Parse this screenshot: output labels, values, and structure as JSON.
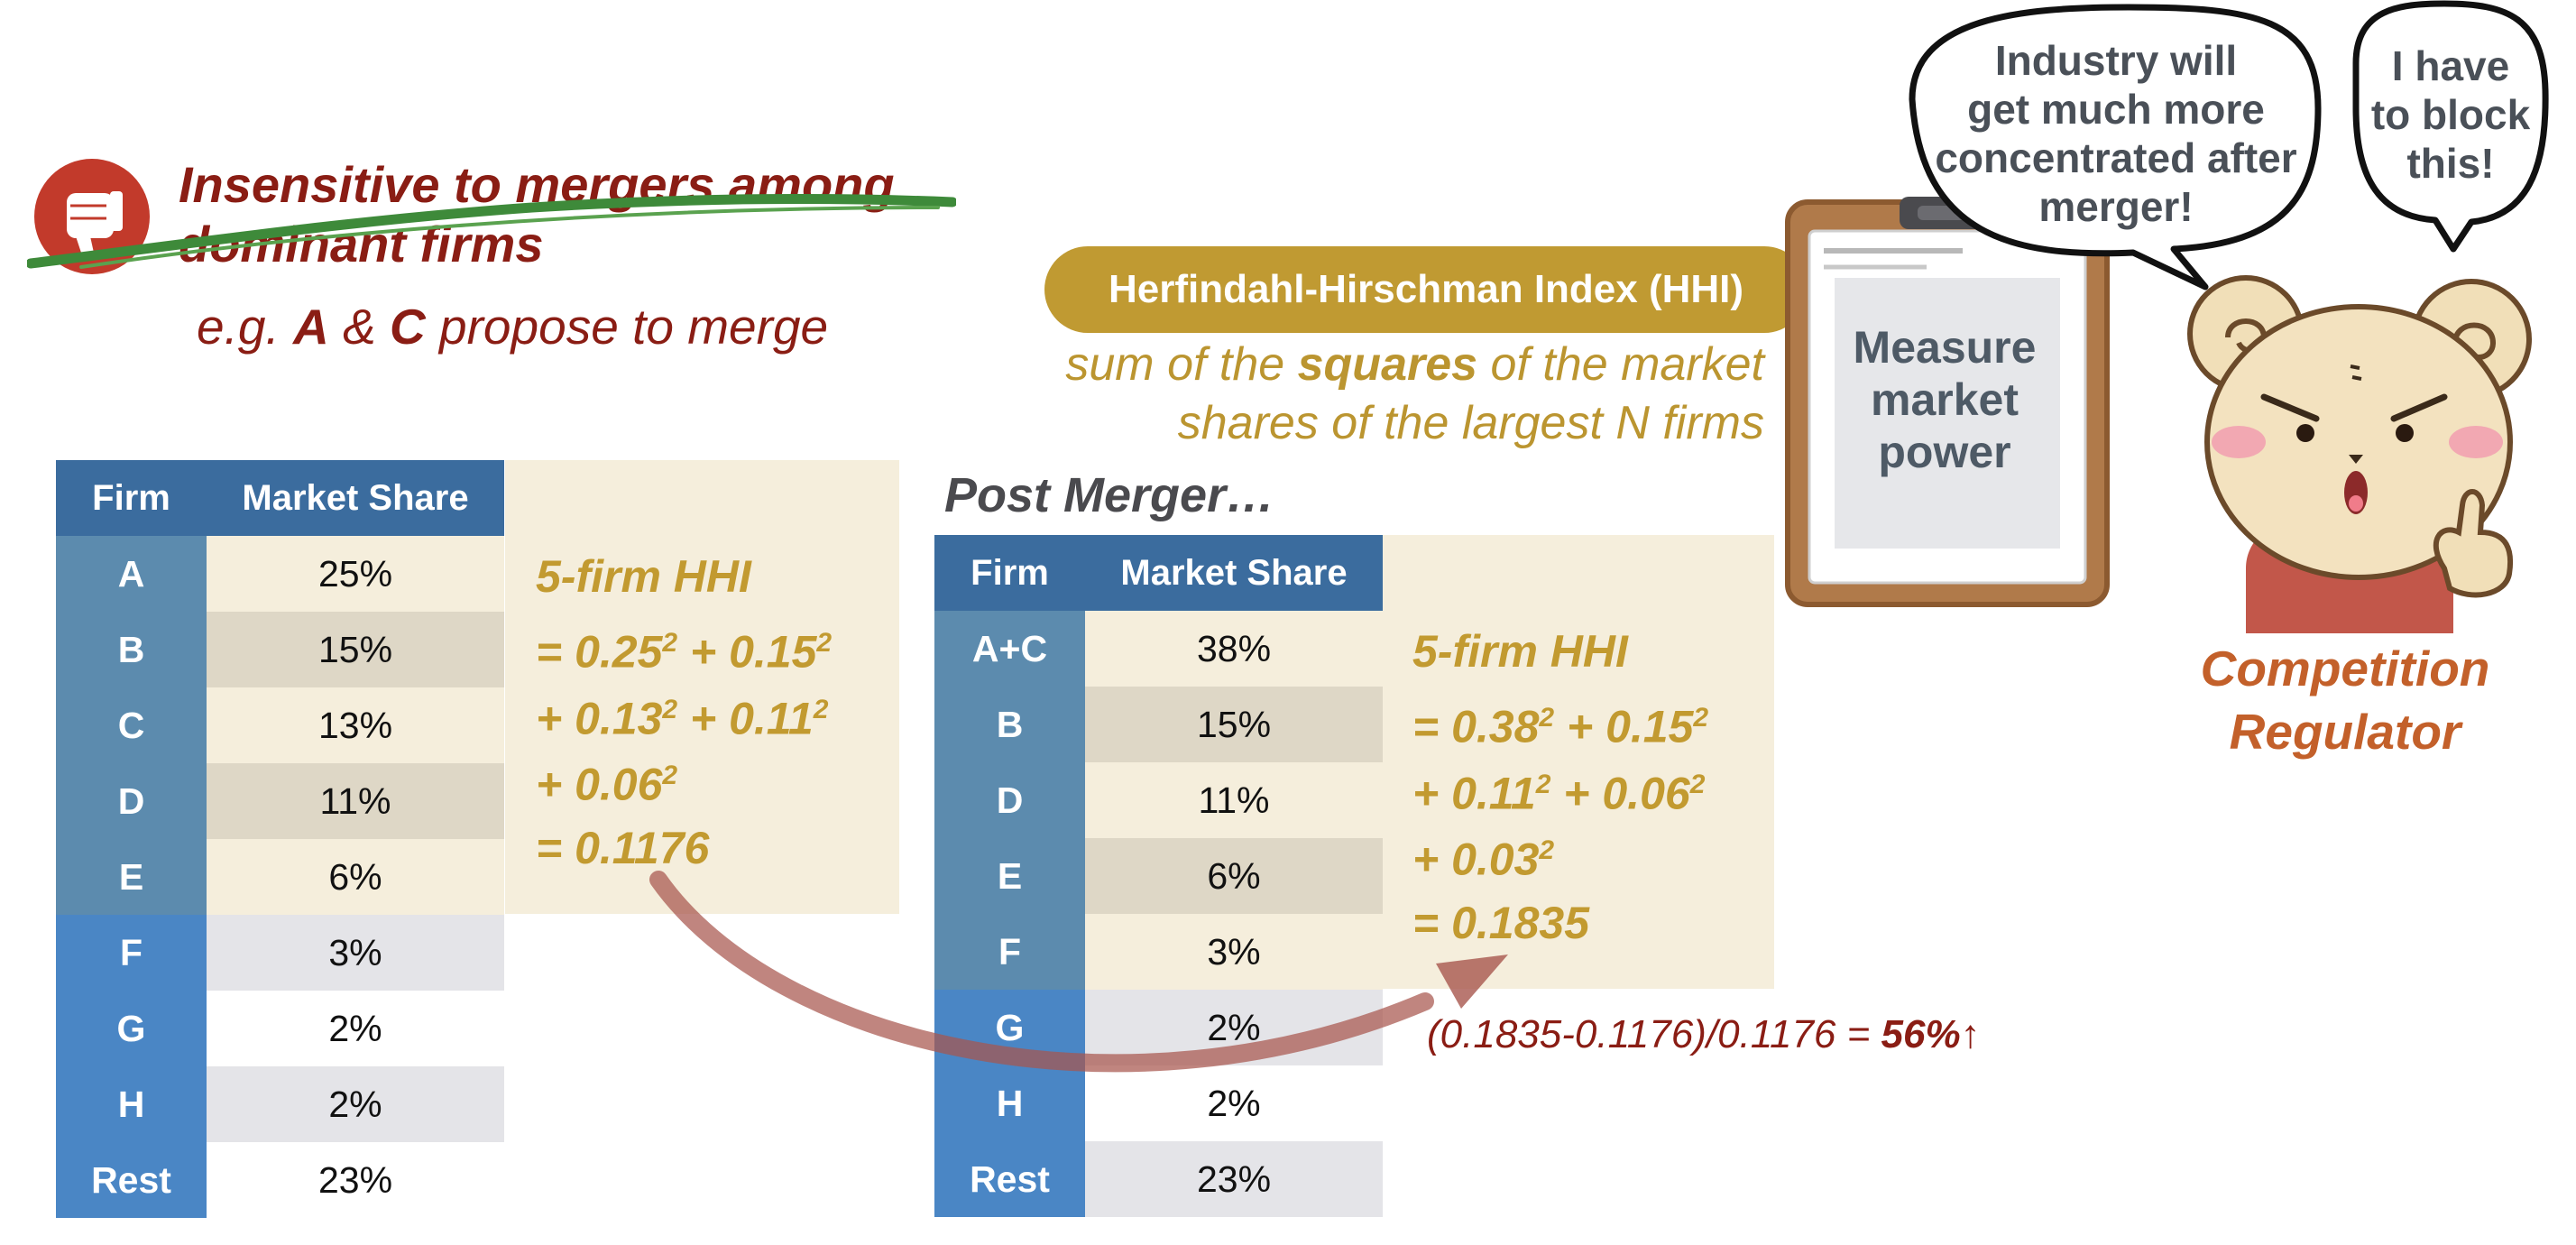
{
  "drawback": {
    "struck_text": "Insensitive to mergers among",
    "line2": "dominant firms",
    "example_prefix": "e.g. ",
    "example_a": "A",
    "example_amp": " & ",
    "example_c": "C",
    "example_suffix": " propose to merge"
  },
  "hhi": {
    "pill_label": "Herfindahl-Hirschman Index (HHI)",
    "def_pre": "sum of the ",
    "def_bold": "squares",
    "def_post": " of the market",
    "def_line2": "shares of the largest N firms"
  },
  "pre_merger": {
    "header_firm": "Firm",
    "header_share": "Market Share",
    "rows": [
      {
        "firm": "A",
        "share": "25%"
      },
      {
        "firm": "B",
        "share": "15%"
      },
      {
        "firm": "C",
        "share": "13%"
      },
      {
        "firm": "D",
        "share": "11%"
      },
      {
        "firm": "E",
        "share": "6%"
      },
      {
        "firm": "F",
        "share": "3%"
      },
      {
        "firm": "G",
        "share": "2%"
      },
      {
        "firm": "H",
        "share": "2%"
      },
      {
        "firm": "Rest",
        "share": "23%"
      }
    ],
    "formula_title": "5-firm HHI",
    "formula_l1a": "= 0.25",
    "formula_l1b": " + 0.15",
    "formula_l2a": "+ 0.13",
    "formula_l2b": " + 0.11",
    "formula_l3a": "+ 0.06",
    "formula_result": "= 0.1176",
    "sup": "2"
  },
  "post_merger": {
    "title": "Post Merger…",
    "header_firm": "Firm",
    "header_share": "Market Share",
    "rows": [
      {
        "firm": "A+C",
        "share": "38%"
      },
      {
        "firm": "B",
        "share": "15%"
      },
      {
        "firm": "D",
        "share": "11%"
      },
      {
        "firm": "E",
        "share": "6%"
      },
      {
        "firm": "F",
        "share": "3%"
      },
      {
        "firm": "G",
        "share": "2%"
      },
      {
        "firm": "H",
        "share": "2%"
      },
      {
        "firm": "Rest",
        "share": "23%"
      }
    ],
    "formula_title": "5-firm HHI",
    "formula_l1a": "= 0.38",
    "formula_l1b": " + 0.15",
    "formula_l2a": "+ 0.11",
    "formula_l2b": " + 0.06",
    "formula_l3a": "+ 0.03",
    "formula_result": "= 0.1835",
    "sup": "2",
    "change_formula": "(0.1835-0.1176)/0.1176 = ",
    "change_value": "56%",
    "change_arrow": "↑"
  },
  "clipboard": {
    "line1": "Measure",
    "line2": "market",
    "line3": "power"
  },
  "bubble_left": {
    "line1": "Industry will",
    "line2": "get much more",
    "line3": "concentrated after",
    "line4": "merger!"
  },
  "bubble_right": {
    "line1": "I have",
    "line2": "to block",
    "line3": "this!"
  },
  "regulator": {
    "line1": "Competition",
    "line2": "Regulator"
  },
  "colors": {
    "dark_red": "#8a1d14",
    "gold": "#c09a32",
    "header_blue": "#3b6c9e",
    "firm_blue_dark": "#5c8bae",
    "firm_blue_light": "#4a86c5",
    "beige": "#f5eedc",
    "regulator_orange": "#c3602a"
  }
}
